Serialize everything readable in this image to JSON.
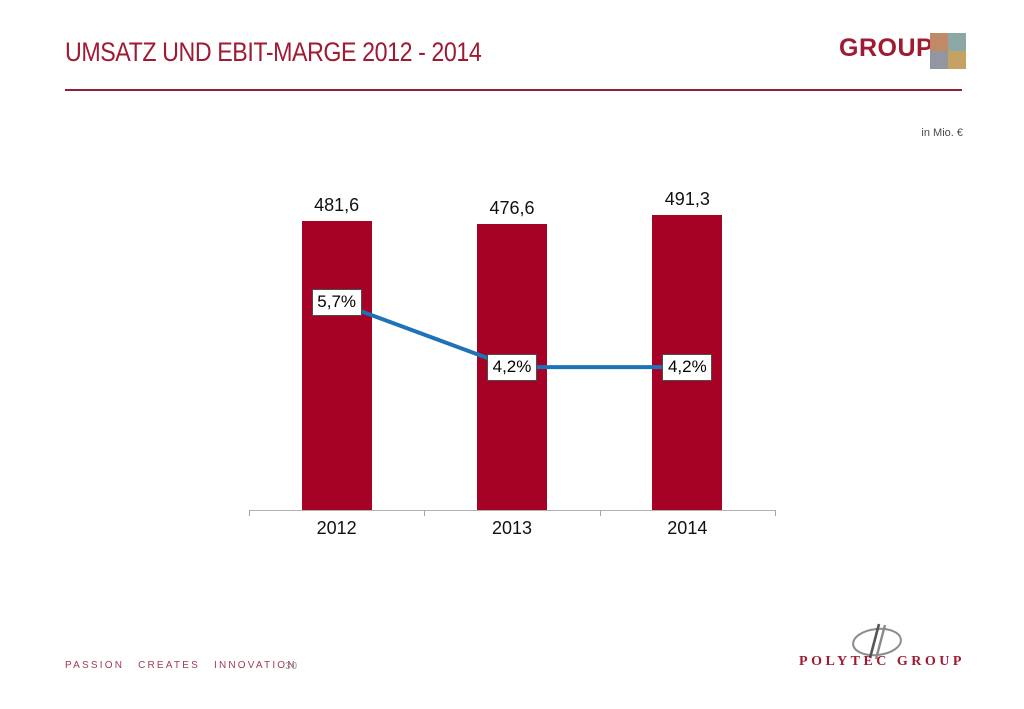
{
  "slide": {
    "title": "UMSATZ UND EBIT-MARGE 2012 - 2014",
    "unit_note": "in Mio. €",
    "brand": {
      "group_label": "GROUP",
      "logo_squares": {
        "top_left": "#C08A66",
        "top_right": "#8BA7A6",
        "bottom_left": "#9196A1",
        "bottom_right": "#C5A263"
      }
    },
    "footer": {
      "tagline": "PASSION CREATES INNOVATION",
      "page_number": "30",
      "logo_text": "POLYTEC GROUP"
    }
  },
  "colors": {
    "brand_red": "#9E1B32",
    "bar_red": "#A50226",
    "line_blue": "#1F72B8"
  },
  "chart_data": {
    "type": "bar",
    "title": "Umsatz und EBIT-Marge 2012 - 2014",
    "unit": "in Mio. €",
    "categories": [
      "2012",
      "2013",
      "2014"
    ],
    "series": [
      {
        "name": "Umsatz (in Mio. €)",
        "type": "bar",
        "values": [
          481.6,
          476.6,
          491.3
        ],
        "labels": [
          "481,6",
          "476,6",
          "491,3"
        ]
      },
      {
        "name": "EBIT-Marge (%)",
        "type": "line",
        "values": [
          5.7,
          4.2,
          4.2
        ],
        "labels": [
          "5,7%",
          "4,2%",
          "4,2%"
        ]
      }
    ],
    "ylim": [
      0,
      520
    ],
    "grid": false,
    "legend": "none",
    "bar_color": "#A50226",
    "line_color": "#1F72B8"
  }
}
